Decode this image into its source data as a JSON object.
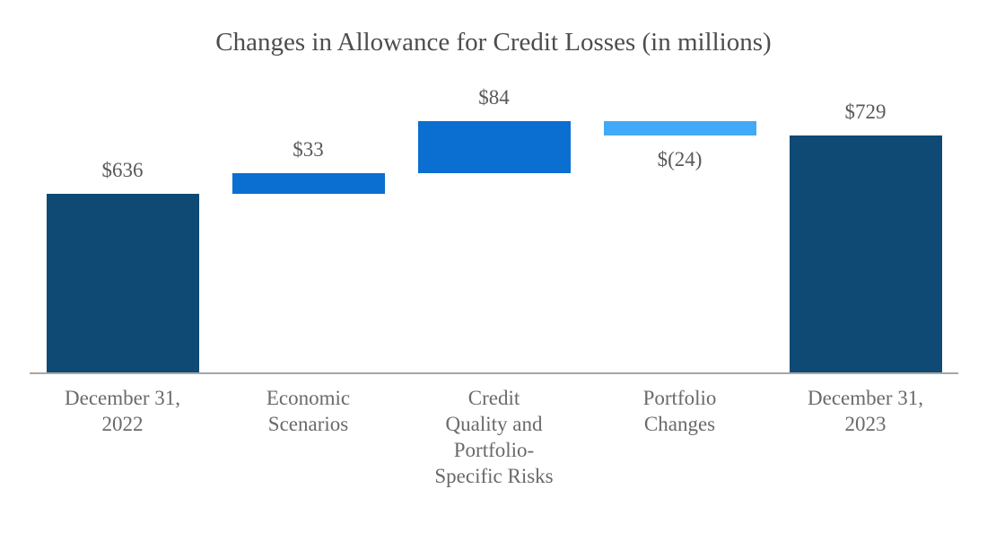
{
  "chart_data": {
    "type": "bar",
    "subtype": "waterfall",
    "title": "Changes in Allowance for Credit Losses (in millions)",
    "categories": [
      "December 31,\n2022",
      "Economic\nScenarios",
      "Credit\nQuality and\nPortfolio-\nSpecific Risks",
      "Portfolio\nChanges",
      "December 31,\n2023"
    ],
    "values": [
      636,
      33,
      84,
      -24,
      729
    ],
    "bar_roles": [
      "total",
      "increase",
      "increase",
      "decrease",
      "total"
    ],
    "value_labels": [
      "$636",
      "$33",
      "$84",
      "$(24)",
      "$729"
    ],
    "cumulative_totals": [
      636,
      669,
      753,
      729,
      729
    ],
    "xlabel": "",
    "ylabel": "",
    "ylim": [
      350,
      800
    ],
    "grid": false,
    "legend": false,
    "y_axis_visible": false,
    "colors": {
      "total_bar": "#0E4A73",
      "increase_bar": "#0B6FD1",
      "decrease_bar": "#42A9F7",
      "axis_line": "#A6A6A6",
      "title_text": "#4D4D4D",
      "value_label_text": "#595959",
      "category_label_text": "#6A6A6A"
    }
  }
}
